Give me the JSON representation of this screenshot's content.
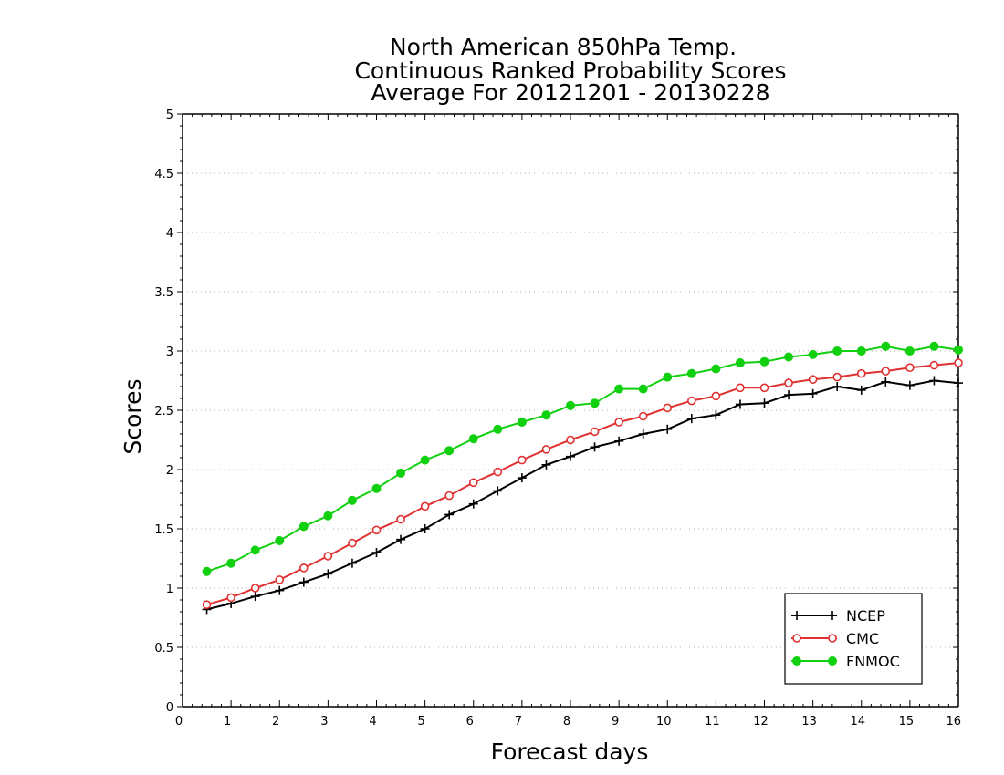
{
  "chart_data": {
    "type": "line",
    "title": [
      "North American 850hPa Temp.",
      "Continuous Ranked Probability Scores",
      "Average For 20121201 - 20130228"
    ],
    "xlabel": "Forecast days",
    "ylabel": "Scores",
    "xlim": [
      0,
      16
    ],
    "ylim": [
      0,
      5
    ],
    "xticks": [
      "0",
      "1",
      "2",
      "3",
      "4",
      "5",
      "6",
      "7",
      "8",
      "9",
      "10",
      "11",
      "12",
      "13",
      "14",
      "15",
      "16"
    ],
    "yticks": [
      "0",
      "0.5",
      "1",
      "1.5",
      "2",
      "2.5",
      "3",
      "3.5",
      "4",
      "4.5",
      "5"
    ],
    "grid": true,
    "legend_position": "bottom-right",
    "x": [
      0.5,
      1,
      1.5,
      2,
      2.5,
      3,
      3.5,
      4,
      4.5,
      5,
      5.5,
      6,
      6.5,
      7,
      7.5,
      8,
      8.5,
      9,
      9.5,
      10,
      10.5,
      11,
      11.5,
      12,
      12.5,
      13,
      13.5,
      14,
      14.5,
      15,
      15.5,
      16
    ],
    "series": [
      {
        "name": "NCEP",
        "color": "#000000",
        "marker": "plus",
        "values": [
          0.82,
          0.87,
          0.93,
          0.98,
          1.05,
          1.12,
          1.21,
          1.3,
          1.41,
          1.5,
          1.62,
          1.71,
          1.82,
          1.93,
          2.04,
          2.11,
          2.19,
          2.24,
          2.3,
          2.34,
          2.43,
          2.46,
          2.55,
          2.56,
          2.63,
          2.64,
          2.7,
          2.67,
          2.74,
          2.71,
          2.75,
          2.73
        ]
      },
      {
        "name": "CMC",
        "color": "#e03030",
        "marker": "open-circle",
        "values": [
          0.86,
          0.92,
          1.0,
          1.07,
          1.17,
          1.27,
          1.38,
          1.49,
          1.58,
          1.69,
          1.78,
          1.89,
          1.98,
          2.08,
          2.17,
          2.25,
          2.32,
          2.4,
          2.45,
          2.52,
          2.58,
          2.62,
          2.69,
          2.69,
          2.73,
          2.76,
          2.78,
          2.81,
          2.83,
          2.86,
          2.88,
          2.9
        ]
      },
      {
        "name": "FNMOC",
        "color": "#10d010",
        "marker": "filled-circle",
        "values": [
          1.14,
          1.21,
          1.32,
          1.4,
          1.52,
          1.61,
          1.74,
          1.84,
          1.97,
          2.08,
          2.16,
          2.26,
          2.34,
          2.4,
          2.46,
          2.54,
          2.56,
          2.68,
          2.68,
          2.78,
          2.81,
          2.85,
          2.9,
          2.91,
          2.95,
          2.97,
          3.0,
          3.0,
          3.04,
          3.0,
          3.04,
          3.01
        ]
      }
    ]
  }
}
